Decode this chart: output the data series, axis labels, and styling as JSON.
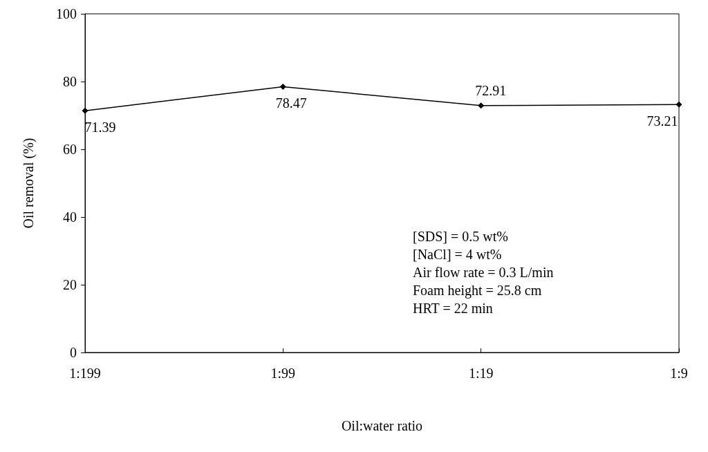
{
  "chart_data": {
    "type": "line",
    "xlabel": "Oil:water ratio",
    "ylabel": "Oil removal (%)",
    "categories": [
      "1:199",
      "1:99",
      "1:19",
      "1:9"
    ],
    "series": [
      {
        "color": "#000000",
        "values": [
          71.39,
          78.47,
          72.91,
          73.21
        ]
      }
    ],
    "ylim": [
      0,
      100
    ],
    "yticks": [
      0,
      20,
      40,
      60,
      80,
      100
    ],
    "grid": false,
    "marker": "diamond",
    "line_style": "solid",
    "data_labels": true,
    "annotations": [
      "[SDS] = 0.5 wt%",
      "[NaCl] = 4 wt%",
      "Air flow rate = 0.3 L/min",
      "Foam height = 25.8 cm",
      "HRT = 22 min"
    ]
  }
}
